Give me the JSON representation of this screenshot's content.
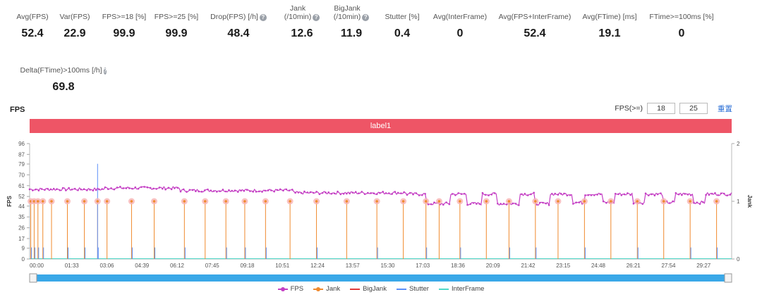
{
  "stats": [
    {
      "label": "Avg(FPS)",
      "value": "52.4",
      "help": false
    },
    {
      "label": "Var(FPS)",
      "value": "22.9",
      "help": false
    },
    {
      "label": "FPS>=18 [%]",
      "value": "99.9",
      "help": false
    },
    {
      "label": "FPS>=25 [%]",
      "value": "99.9",
      "help": false
    },
    {
      "label": "Drop(FPS) [/h]",
      "value": "48.4",
      "help": true
    },
    {
      "label": "Jank\n(/10min)",
      "value": "12.6",
      "help": true
    },
    {
      "label": "BigJank\n(/10min)",
      "value": "11.9",
      "help": true
    },
    {
      "label": "Stutter [%]",
      "value": "0.4",
      "help": false
    },
    {
      "label": "Avg(InterFrame)",
      "value": "0",
      "help": false
    },
    {
      "label": "Avg(FPS+InterFrame)",
      "value": "52.4",
      "help": false
    },
    {
      "label": "Avg(FTime) [ms]",
      "value": "19.1",
      "help": false
    },
    {
      "label": "FTime>=100ms [%]",
      "value": "0",
      "help": false
    },
    {
      "label": "Delta(FTime)>100ms [/h]",
      "value": "69.8",
      "help": true
    }
  ],
  "chart_title": "FPS",
  "threshold": {
    "label": "FPS(>=)",
    "low": "18",
    "high": "25",
    "reset": "重置"
  },
  "band_label": "label1",
  "colors": {
    "fps": "#c43fc4",
    "jank": "#f08a2e",
    "bigjank": "#e03a3a",
    "stutter": "#5b8ff9",
    "interframe": "#4fd8c8",
    "band": "#ee5566",
    "slider": "#3aa8e8"
  },
  "chart_data": {
    "type": "line",
    "title": "FPS",
    "y_left": {
      "label": "FPS",
      "ticks": [
        0,
        9,
        17,
        26,
        35,
        44,
        52,
        61,
        70,
        79,
        87,
        96
      ],
      "range": [
        0,
        96
      ]
    },
    "y_right": {
      "label": "Jank",
      "ticks": [
        0,
        1,
        2
      ],
      "range": [
        0,
        2
      ]
    },
    "x_ticks": [
      "00:00",
      "01:33",
      "03:06",
      "04:39",
      "06:12",
      "07:45",
      "09:18",
      "10:51",
      "12:24",
      "13:57",
      "15:30",
      "17:03",
      "18:36",
      "20:09",
      "21:42",
      "23:15",
      "24:48",
      "26:21",
      "27:54",
      "29:27"
    ],
    "x_range_sec": [
      0,
      1860
    ],
    "fps_segments": [
      {
        "t0": 0,
        "t1": 200,
        "fps": 58
      },
      {
        "t0": 200,
        "t1": 400,
        "fps": 59
      },
      {
        "t0": 400,
        "t1": 700,
        "fps": 57
      },
      {
        "t0": 700,
        "t1": 1000,
        "fps": 55
      },
      {
        "t0": 1000,
        "t1": 1050,
        "fps": 54
      },
      {
        "t0": 1050,
        "t1": 1115,
        "fps": 46
      },
      {
        "t0": 1115,
        "t1": 1160,
        "fps": 54
      },
      {
        "t0": 1160,
        "t1": 1200,
        "fps": 46
      },
      {
        "t0": 1200,
        "t1": 1240,
        "fps": 54
      },
      {
        "t0": 1240,
        "t1": 1300,
        "fps": 46
      },
      {
        "t0": 1300,
        "t1": 1340,
        "fps": 54
      },
      {
        "t0": 1340,
        "t1": 1380,
        "fps": 46
      },
      {
        "t0": 1380,
        "t1": 1440,
        "fps": 54
      },
      {
        "t0": 1440,
        "t1": 1470,
        "fps": 47
      },
      {
        "t0": 1470,
        "t1": 1520,
        "fps": 54
      },
      {
        "t0": 1520,
        "t1": 1550,
        "fps": 47
      },
      {
        "t0": 1550,
        "t1": 1600,
        "fps": 54
      },
      {
        "t0": 1600,
        "t1": 1630,
        "fps": 47
      },
      {
        "t0": 1630,
        "t1": 1680,
        "fps": 54
      },
      {
        "t0": 1680,
        "t1": 1710,
        "fps": 47
      },
      {
        "t0": 1710,
        "t1": 1760,
        "fps": 54
      },
      {
        "t0": 1760,
        "t1": 1790,
        "fps": 47
      },
      {
        "t0": 1790,
        "t1": 1860,
        "fps": 54
      }
    ],
    "jank_times": [
      3,
      12,
      22,
      35,
      58,
      100,
      145,
      180,
      205,
      270,
      330,
      410,
      465,
      520,
      570,
      625,
      690,
      760,
      840,
      920,
      990,
      1050,
      1085,
      1140,
      1210,
      1270,
      1340,
      1400,
      1470,
      1540,
      1610,
      1680,
      1750,
      1820
    ],
    "stutter_times": [
      3,
      12,
      22,
      35,
      100,
      145,
      180,
      270,
      330,
      410,
      520,
      570,
      625,
      760,
      920,
      1050,
      1140,
      1270,
      1340,
      1470,
      1610,
      1750,
      1820
    ],
    "stutter_spike": {
      "t": 180,
      "value": 1.65
    },
    "legend": [
      "FPS",
      "Jank",
      "BigJank",
      "Stutter",
      "InterFrame"
    ]
  }
}
